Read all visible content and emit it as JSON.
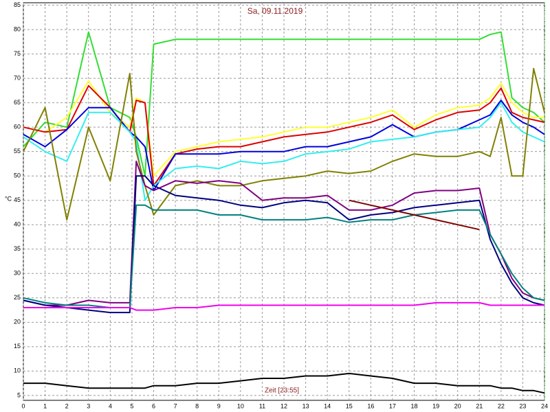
{
  "chart_data": {
    "type": "line",
    "title": "Sa, 09.11.2019",
    "y_label": "°C",
    "x_label": "Zeit [23:55]",
    "x": [
      0,
      1,
      2,
      3,
      4,
      4.9,
      5.2,
      5.6,
      6,
      7,
      8,
      9,
      10,
      11,
      12,
      13,
      14,
      15,
      16,
      17,
      18,
      19,
      20,
      21,
      21.5,
      22,
      22.5,
      23,
      23.5,
      24
    ],
    "xlim": [
      0,
      24
    ],
    "xticks": [
      0,
      1,
      2,
      3,
      4,
      5,
      6,
      7,
      8,
      9,
      10,
      11,
      12,
      13,
      14,
      15,
      16,
      17,
      18,
      19,
      20,
      21,
      22,
      23,
      24
    ],
    "ylim": [
      4,
      85.5
    ],
    "yticks": [
      5,
      10,
      15,
      20,
      25,
      30,
      35,
      40,
      45,
      50,
      55,
      60,
      65,
      70,
      75,
      80,
      85
    ],
    "grid": true,
    "series": [
      {
        "color": "#33dd33",
        "values": [
          56,
          61,
          60,
          79.5,
          64,
          62,
          58,
          50,
          77,
          78,
          78,
          78,
          78,
          78,
          78,
          78,
          78,
          78,
          78,
          78,
          78,
          78,
          78,
          78,
          79,
          79.5,
          66,
          64,
          63,
          61
        ]
      },
      {
        "color": "#ffff33",
        "values": [
          60,
          59,
          62,
          69.5,
          63,
          60,
          66,
          65,
          50,
          55,
          56,
          57,
          57.5,
          58,
          59,
          60,
          60,
          61,
          62,
          63.5,
          60,
          62.5,
          64,
          64.5,
          66,
          69,
          65,
          63,
          62,
          62
        ]
      },
      {
        "color": "#dd0000",
        "values": [
          60,
          59,
          59.5,
          68.5,
          64,
          59,
          65.5,
          65,
          48,
          54.5,
          55.5,
          56,
          56,
          57,
          58,
          58.5,
          59,
          60,
          61,
          62.5,
          59.5,
          61.5,
          63,
          63.5,
          65,
          68,
          63,
          62,
          61.5,
          61
        ]
      },
      {
        "color": "#0000dd",
        "values": [
          58.5,
          56,
          59.5,
          64,
          64,
          59,
          58,
          56,
          47,
          54.5,
          54.5,
          54.5,
          55,
          55,
          55,
          56,
          56,
          57,
          58,
          60.5,
          58,
          59,
          59.5,
          61.5,
          62.5,
          65.5,
          62.5,
          61,
          60,
          58.5
        ]
      },
      {
        "color": "#33eeee",
        "values": [
          58,
          55,
          53,
          63,
          63,
          59,
          57,
          45,
          48,
          51.5,
          52,
          51.5,
          53,
          52.5,
          53,
          54.5,
          55,
          55.5,
          57,
          57.5,
          58,
          59,
          59.5,
          60,
          62,
          65,
          61,
          59,
          58,
          57
        ]
      },
      {
        "color": "#808000",
        "values": [
          55,
          64,
          41,
          60,
          49,
          71,
          55,
          48,
          42,
          48,
          49,
          48,
          48,
          49,
          49.5,
          50,
          51,
          50.5,
          51,
          53,
          54.5,
          54,
          54,
          55,
          54,
          62,
          50,
          50,
          72,
          63
        ]
      },
      {
        "color": "#800080",
        "values": [
          24.5,
          23.5,
          23.5,
          24.5,
          24,
          24,
          53,
          48,
          47,
          49,
          48.5,
          49,
          48.5,
          45,
          45.5,
          45.5,
          46,
          43,
          43,
          44,
          46.5,
          47,
          47,
          47.5,
          38,
          34,
          29,
          26,
          25,
          24.5
        ]
      },
      {
        "color": "#000080",
        "values": [
          24.5,
          23.5,
          23,
          22.5,
          22,
          22,
          50,
          50,
          48,
          46,
          45.5,
          45,
          44,
          43.5,
          44.5,
          45,
          44.5,
          41,
          42,
          42.5,
          43.5,
          44,
          44.5,
          45,
          37,
          32,
          28,
          25,
          24,
          23.5
        ]
      },
      {
        "color": "#008080",
        "values": [
          25,
          24,
          23.5,
          23.5,
          23,
          23,
          44,
          44,
          43,
          43,
          43,
          42,
          42,
          41,
          41,
          41,
          41.5,
          40.5,
          41,
          41,
          42,
          42.5,
          43,
          43,
          38,
          34,
          30,
          27,
          25,
          24.5
        ]
      },
      {
        "color": "#ee00ee",
        "values": [
          23,
          23,
          23,
          23,
          23,
          23,
          22.5,
          22.5,
          22.5,
          23,
          23,
          23.5,
          23.5,
          23.5,
          23.5,
          23.5,
          23.5,
          23.5,
          23.5,
          23.5,
          23.5,
          24,
          24,
          24,
          23.5,
          23.5,
          23.5,
          23.5,
          23.5,
          23.5
        ]
      },
      {
        "color": "#000000",
        "values": [
          7.5,
          7.5,
          7,
          6.5,
          6.5,
          6.5,
          6.5,
          6.5,
          7,
          7,
          7.5,
          7.5,
          8,
          8.5,
          8.5,
          9,
          9,
          9.5,
          9,
          8.5,
          7.5,
          7.5,
          7,
          7,
          7,
          6.5,
          6.5,
          6,
          6,
          5.5
        ]
      },
      {
        "color": "#800000",
        "values": [
          null,
          null,
          null,
          null,
          null,
          null,
          null,
          null,
          null,
          null,
          null,
          null,
          null,
          null,
          null,
          null,
          null,
          45,
          44,
          43,
          42,
          41,
          40,
          39,
          null,
          null,
          null,
          null,
          null,
          null
        ]
      }
    ]
  }
}
